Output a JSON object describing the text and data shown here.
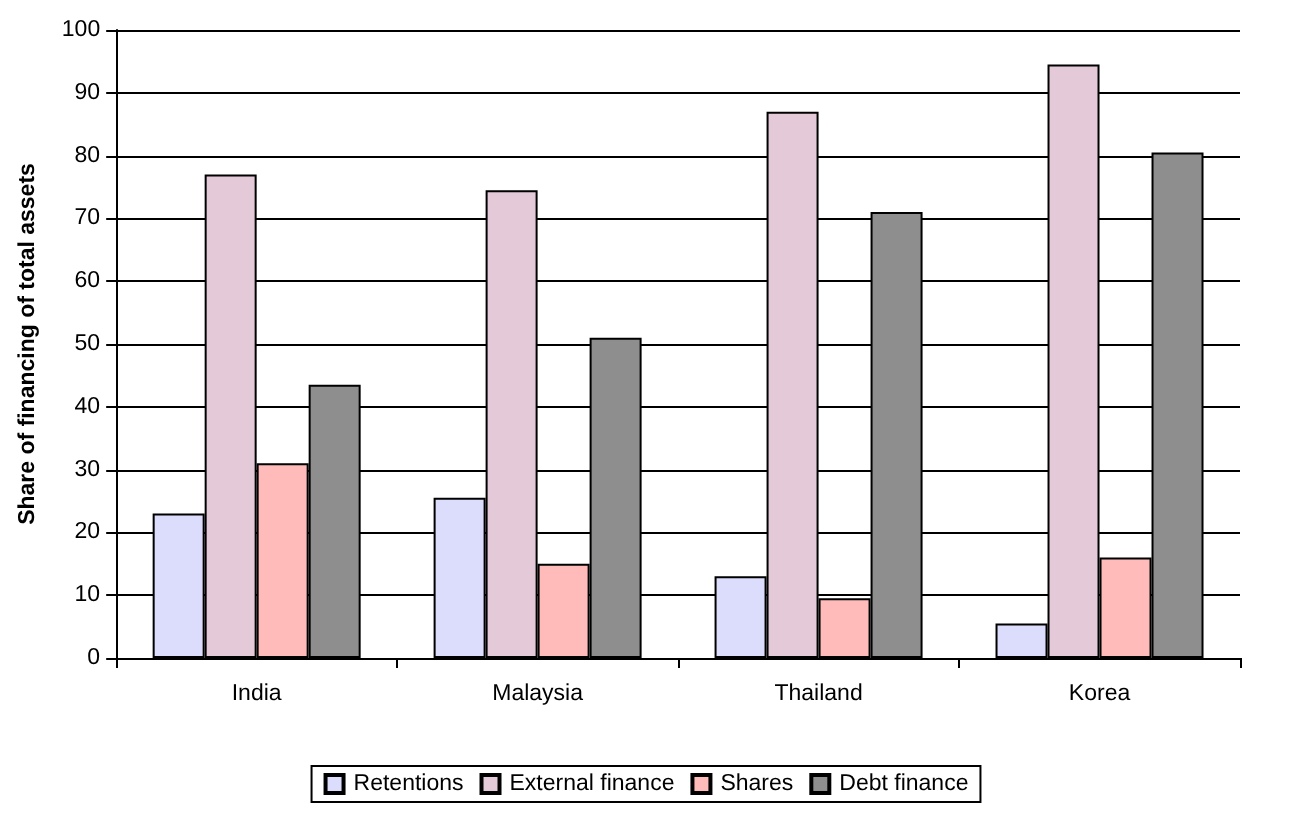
{
  "chart_data": {
    "type": "bar",
    "ylabel": "Share of financing of total assets",
    "categories": [
      "India",
      "Malaysia",
      "Thailand",
      "Korea"
    ],
    "series": [
      {
        "name": "Retentions",
        "color": "#dcdcfc",
        "values": [
          23,
          25.5,
          13,
          5.5
        ]
      },
      {
        "name": "External finance",
        "color": "#e4cad8",
        "values": [
          77,
          74.5,
          87,
          94.5
        ]
      },
      {
        "name": "Shares",
        "color": "#ffbaba",
        "values": [
          31,
          15,
          9.5,
          16
        ]
      },
      {
        "name": "Debt finance",
        "color": "#8e8e8e",
        "values": [
          43.5,
          51,
          71,
          80.5
        ]
      }
    ],
    "ylim": [
      0,
      100
    ],
    "yticks": [
      0,
      10,
      20,
      30,
      40,
      50,
      60,
      70,
      80,
      90,
      100
    ],
    "grid": "y",
    "legend": "bottom"
  }
}
